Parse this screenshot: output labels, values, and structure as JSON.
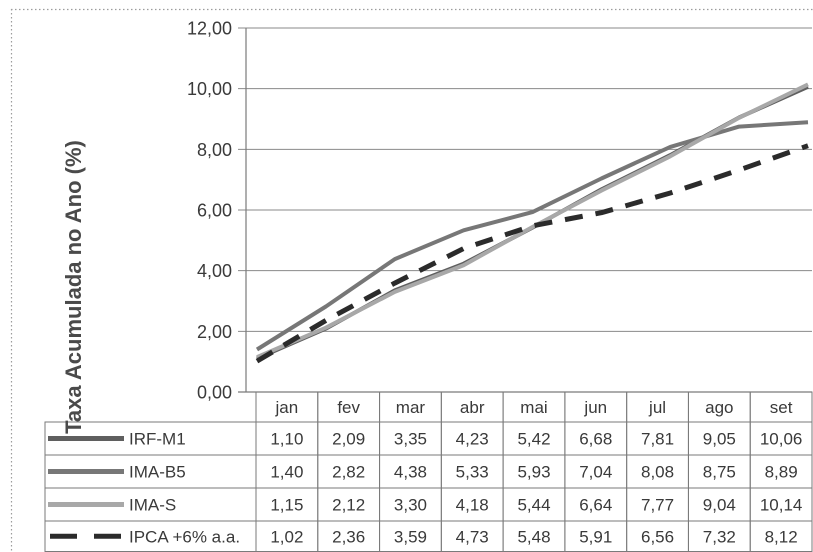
{
  "chart_data": {
    "type": "line",
    "ylabel": "Taxa Acumulada no Ano (%)",
    "categories": [
      "jan",
      "fev",
      "mar",
      "abr",
      "mai",
      "jun",
      "jul",
      "ago",
      "set"
    ],
    "ylim": [
      0,
      12
    ],
    "yticks": [
      0,
      2,
      4,
      6,
      8,
      10,
      12
    ],
    "grid": true,
    "legend": "bottom",
    "series": [
      {
        "name": "IRF-M1",
        "color": "#5f5f5f",
        "dashed": false,
        "values": [
          1.1,
          2.09,
          3.35,
          4.23,
          5.42,
          6.68,
          7.81,
          9.05,
          10.06
        ]
      },
      {
        "name": "IMA-B5",
        "color": "#777777",
        "dashed": false,
        "values": [
          1.4,
          2.82,
          4.38,
          5.33,
          5.93,
          7.04,
          8.08,
          8.75,
          8.89
        ]
      },
      {
        "name": "IMA-S",
        "color": "#a8a8a8",
        "dashed": false,
        "values": [
          1.15,
          2.12,
          3.3,
          4.18,
          5.44,
          6.64,
          7.77,
          9.04,
          10.14
        ]
      },
      {
        "name": "IPCA +6% a.a.",
        "color": "#2b2b2b",
        "dashed": true,
        "values": [
          1.02,
          2.36,
          3.59,
          4.73,
          5.48,
          5.91,
          6.56,
          7.32,
          8.12
        ]
      }
    ]
  }
}
